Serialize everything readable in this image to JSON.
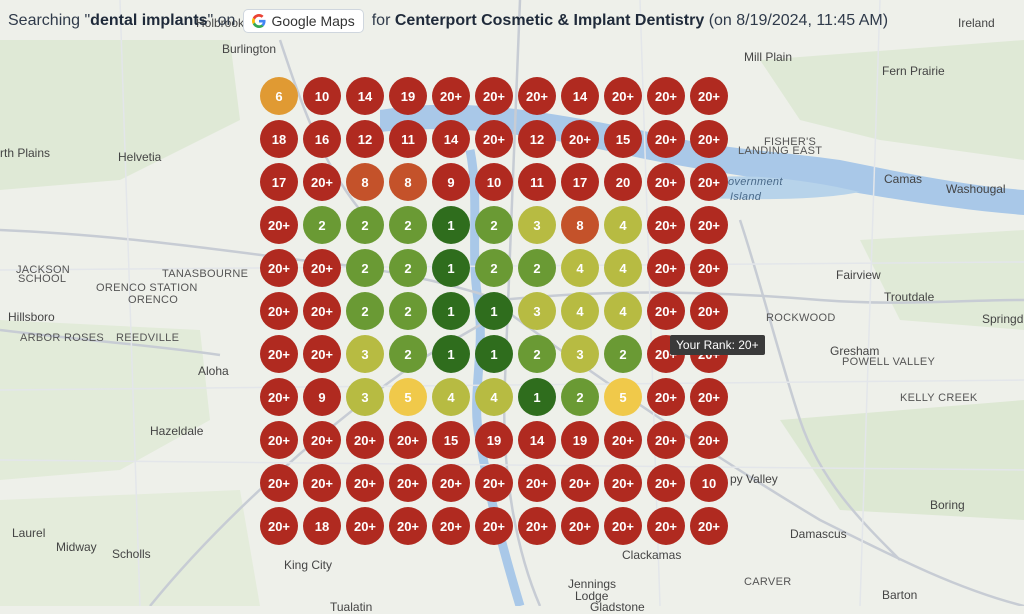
{
  "header": {
    "prefix": "Searching \"",
    "keyword": "dental implants",
    "on_text": "\" on",
    "platform": "Google Maps",
    "for_text": "for",
    "business": "Centerport Cosmetic & Implant Dentistry",
    "date": "(on 8/19/2024, 11:45 AM)"
  },
  "tooltip": "Your Rank: 20+",
  "colors": {
    "red": "#b02a20",
    "orange_red": "#c4522a",
    "orange": "#e09a33",
    "yellow": "#f0c94a",
    "yellow_green": "#b7bb42",
    "green": "#6a9a34",
    "dark_green": "#2f6d1d"
  },
  "ranks": [
    [
      "6",
      "10",
      "14",
      "19",
      "20+",
      "20+",
      "20+",
      "14",
      "20+",
      "20+",
      "20+"
    ],
    [
      "18",
      "16",
      "12",
      "11",
      "14",
      "20+",
      "12",
      "20+",
      "15",
      "20+",
      "20+"
    ],
    [
      "17",
      "20+",
      "8",
      "8",
      "9",
      "10",
      "11",
      "17",
      "20",
      "20+",
      "20+"
    ],
    [
      "20+",
      "2",
      "2",
      "2",
      "1",
      "2",
      "3",
      "8",
      "4",
      "20+",
      "20+"
    ],
    [
      "20+",
      "20+",
      "2",
      "2",
      "1",
      "2",
      "2",
      "4",
      "4",
      "20+",
      "20+"
    ],
    [
      "20+",
      "20+",
      "2",
      "2",
      "1",
      "1",
      "3",
      "4",
      "4",
      "20+",
      "20+"
    ],
    [
      "20+",
      "20+",
      "3",
      "2",
      "1",
      "1",
      "2",
      "3",
      "2",
      "20+",
      "20+"
    ],
    [
      "20+",
      "9",
      "3",
      "5",
      "4",
      "4",
      "1",
      "2",
      "5",
      "20+",
      "20+"
    ],
    [
      "20+",
      "20+",
      "20+",
      "20+",
      "15",
      "19",
      "14",
      "19",
      "20+",
      "20+",
      "20+"
    ],
    [
      "20+",
      "20+",
      "20+",
      "20+",
      "20+",
      "20+",
      "20+",
      "20+",
      "20+",
      "20+",
      "10"
    ],
    [
      "20+",
      "18",
      "20+",
      "20+",
      "20+",
      "20+",
      "20+",
      "20+",
      "20+",
      "20+",
      "20+"
    ]
  ],
  "map_labels": [
    {
      "text": "Holbrook",
      "type": "city"
    },
    {
      "text": "Burlington",
      "type": "city"
    },
    {
      "text": "Ireland",
      "type": "city"
    },
    {
      "text": "Mill Plain",
      "type": "city"
    },
    {
      "text": "Fern Prairie",
      "type": "city"
    },
    {
      "text": "rth Plains",
      "type": "city"
    },
    {
      "text": "Helvetia",
      "type": "city"
    },
    {
      "text": "FISHER'S",
      "type": "small"
    },
    {
      "text": "LANDING EAST",
      "type": "small"
    },
    {
      "text": "Camas",
      "type": "city"
    },
    {
      "text": "Washougal",
      "type": "city"
    },
    {
      "text": "overnment",
      "type": "blue"
    },
    {
      "text": "Island",
      "type": "blue"
    },
    {
      "text": "JACKSON",
      "type": "small"
    },
    {
      "text": "SCHOOL",
      "type": "small"
    },
    {
      "text": "TANASBOURNE",
      "type": "small"
    },
    {
      "text": "ORENCO STATION",
      "type": "small"
    },
    {
      "text": "ORENCO",
      "type": "small"
    },
    {
      "text": "Fairview",
      "type": "city"
    },
    {
      "text": "Hillsboro",
      "type": "city"
    },
    {
      "text": "ARBOR ROSES",
      "type": "small"
    },
    {
      "text": "REEDVILLE",
      "type": "small"
    },
    {
      "text": "Troutdale",
      "type": "city"
    },
    {
      "text": "ROCKWOOD",
      "type": "small"
    },
    {
      "text": "Springd",
      "type": "city"
    },
    {
      "text": "Gresham",
      "type": "city"
    },
    {
      "text": "POWELL VALLEY",
      "type": "small"
    },
    {
      "text": "Aloha",
      "type": "city"
    },
    {
      "text": "KELLY CREEK",
      "type": "small"
    },
    {
      "text": "Hazeldale",
      "type": "city"
    },
    {
      "text": "py Valley",
      "type": "city"
    },
    {
      "text": "Boring",
      "type": "city"
    },
    {
      "text": "Laurel",
      "type": "city"
    },
    {
      "text": "Midway",
      "type": "city"
    },
    {
      "text": "Scholls",
      "type": "city"
    },
    {
      "text": "Damascus",
      "type": "city"
    },
    {
      "text": "King City",
      "type": "city"
    },
    {
      "text": "Clackamas",
      "type": "city"
    },
    {
      "text": "Jennings",
      "type": "city"
    },
    {
      "text": "Lodge",
      "type": "city"
    },
    {
      "text": "CARVER",
      "type": "small"
    },
    {
      "text": "Barton",
      "type": "city"
    },
    {
      "text": "Tualatin",
      "type": "city"
    },
    {
      "text": "Gladstone",
      "type": "city"
    }
  ]
}
